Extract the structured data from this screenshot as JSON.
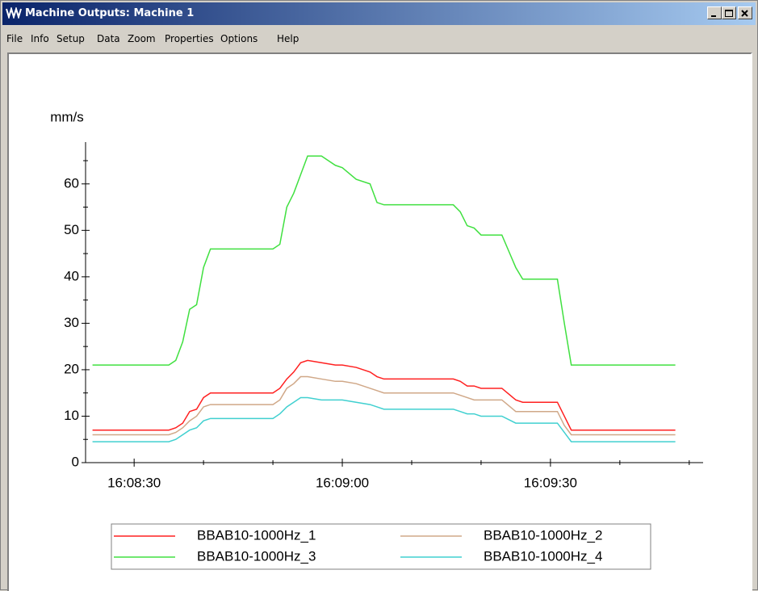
{
  "window": {
    "title": "Machine Outputs: Machine 1",
    "menu": [
      "File",
      "Info",
      "Setup",
      "Data",
      "Zoom",
      "Properties",
      "Options",
      "Help"
    ]
  },
  "chart_data": {
    "type": "line",
    "ylabel": "mm/s",
    "x": [
      "16:08:24",
      "16:08:35",
      "16:08:36",
      "16:08:37",
      "16:08:38",
      "16:08:39",
      "16:08:40",
      "16:08:41",
      "16:08:50",
      "16:08:51",
      "16:08:52",
      "16:08:53",
      "16:08:54",
      "16:08:55",
      "16:08:57",
      "16:08:59",
      "16:09:00",
      "16:09:02",
      "16:09:04",
      "16:09:05",
      "16:09:06",
      "16:09:16",
      "16:09:17",
      "16:09:18",
      "16:09:19",
      "16:09:20",
      "16:09:23",
      "16:09:25",
      "16:09:26",
      "16:09:31",
      "16:09:32",
      "16:09:33",
      "16:09:48"
    ],
    "series": [
      {
        "name": "BBAB10-1000Hz_1",
        "color": "#ff2020",
        "values": [
          7,
          7,
          7.5,
          8.5,
          11,
          11.5,
          14,
          15,
          15,
          16,
          18,
          19.5,
          21.5,
          22,
          21.5,
          21,
          21,
          20.5,
          19.5,
          18.5,
          18,
          18,
          17.5,
          16.5,
          16.5,
          16,
          16,
          13.5,
          13,
          13,
          10,
          7,
          7
        ]
      },
      {
        "name": "BBAB10-1000Hz_2",
        "color": "#d0a888",
        "values": [
          6,
          6,
          6.5,
          7.5,
          9,
          10,
          12,
          12.5,
          12.5,
          13.5,
          16,
          17,
          18.5,
          18.5,
          18,
          17.5,
          17.5,
          17,
          16,
          15.5,
          15,
          15,
          14.5,
          14,
          13.5,
          13.5,
          13.5,
          11,
          11,
          11,
          8,
          6,
          6
        ]
      },
      {
        "name": "BBAB10-1000Hz_3",
        "color": "#40e040",
        "values": [
          21,
          21,
          22,
          26,
          33,
          34,
          42,
          46,
          46,
          47,
          55,
          58,
          62,
          66,
          66,
          64,
          63.5,
          61,
          60,
          56,
          55.5,
          55.5,
          54,
          51,
          50.5,
          49,
          49,
          42,
          39.5,
          39.5,
          30,
          21,
          21
        ]
      },
      {
        "name": "BBAB10-1000Hz_4",
        "color": "#40d0d0",
        "values": [
          4.5,
          4.5,
          5,
          6,
          7,
          7.5,
          9,
          9.5,
          9.5,
          10.5,
          12,
          13,
          14,
          14,
          13.5,
          13.5,
          13.5,
          13,
          12.5,
          12,
          11.5,
          11.5,
          11,
          10.5,
          10.5,
          10,
          10,
          8.5,
          8.5,
          8.5,
          6.5,
          4.5,
          4.5
        ]
      }
    ],
    "xlim": [
      "16:08:23",
      "16:09:52"
    ],
    "xticks": [
      "16:08:30",
      "16:09:00",
      "16:09:30"
    ],
    "xminorticks": [
      "16:08:40",
      "16:08:50",
      "16:09:10",
      "16:09:20",
      "16:09:40",
      "16:09:50"
    ],
    "ylim": [
      0,
      69
    ],
    "yticks": [
      0,
      10,
      20,
      30,
      40,
      50,
      60
    ],
    "yminorticks": [
      5,
      15,
      25,
      35,
      45,
      55,
      65
    ]
  }
}
